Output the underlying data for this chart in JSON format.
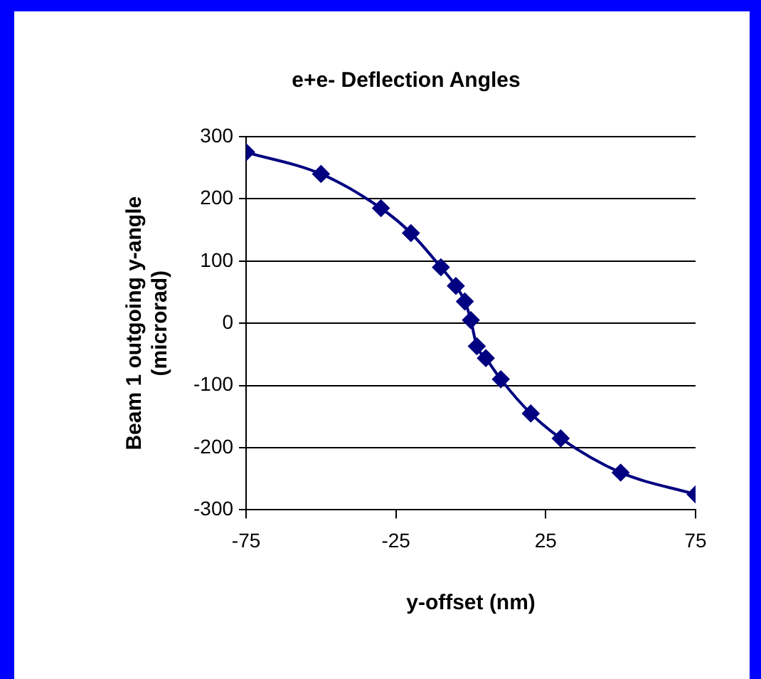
{
  "chart_data": {
    "type": "line",
    "title": "e+e- Deflection Angles",
    "xlabel": "y-offset (nm)",
    "ylabel": "Beam 1 outgoing y-angle (microrad)",
    "x": [
      -75,
      -50,
      -30,
      -20,
      -10,
      -5,
      -2,
      0,
      2,
      5,
      10,
      20,
      30,
      50,
      75
    ],
    "series": [
      {
        "color": "#000080",
        "values": [
          275,
          240,
          185,
          145,
          90,
          60,
          35,
          5,
          -37,
          -56,
          -90,
          -145,
          -185,
          -240,
          -275
        ]
      }
    ],
    "xlim": [
      -75,
      75
    ],
    "xticks": [
      -75,
      -25,
      25,
      75
    ],
    "ylim": [
      -300,
      300
    ],
    "yticks": [
      -300,
      -200,
      -100,
      0,
      100,
      200,
      300
    ],
    "grid": "y",
    "legend": false,
    "marker": "diamond",
    "line_style": "solid"
  }
}
